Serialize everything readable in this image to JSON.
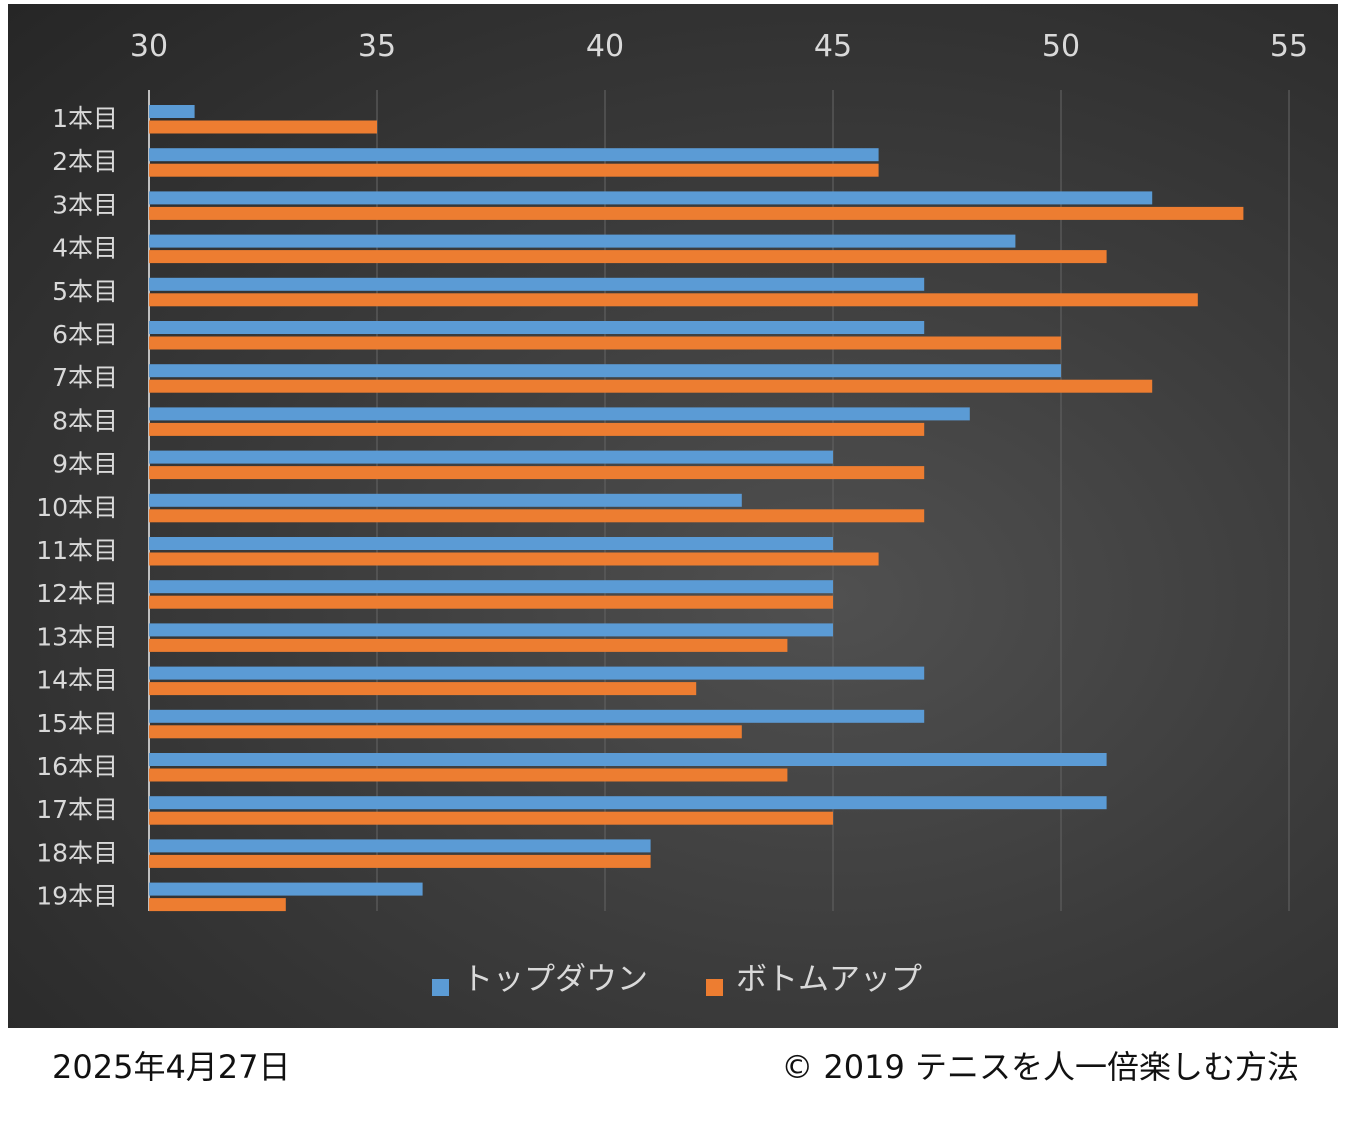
{
  "chart_data": {
    "type": "bar",
    "orientation": "horizontal",
    "categories": [
      "1本目",
      "2本目",
      "3本目",
      "4本目",
      "5本目",
      "6本目",
      "7本目",
      "8本目",
      "9本目",
      "10本目",
      "11本目",
      "12本目",
      "13本目",
      "14本目",
      "15本目",
      "16本目",
      "17本目",
      "18本目",
      "19本目"
    ],
    "series": [
      {
        "name": "トップダウン",
        "color": "#5b9bd5",
        "values": [
          31,
          46,
          52,
          49,
          47,
          47,
          50,
          48,
          45,
          43,
          45,
          45,
          45,
          47,
          47,
          51,
          51,
          41,
          36
        ]
      },
      {
        "name": "ボトムアップ",
        "color": "#ed7d31",
        "values": [
          35,
          46,
          54,
          51,
          53,
          50,
          52,
          47,
          47,
          47,
          46,
          45,
          44,
          42,
          43,
          44,
          45,
          41,
          33
        ]
      }
    ],
    "x_ticks": [
      "30",
      "35",
      "40",
      "45",
      "50",
      "55"
    ],
    "xlim": [
      30,
      55
    ],
    "x_axis_position": "top",
    "grid": true,
    "legend_position": "bottom",
    "background": "#3a3a3a"
  },
  "footer": {
    "date": "2025年4月27日",
    "copyright": "© 2019  テニスを人一倍楽しむ方法"
  }
}
